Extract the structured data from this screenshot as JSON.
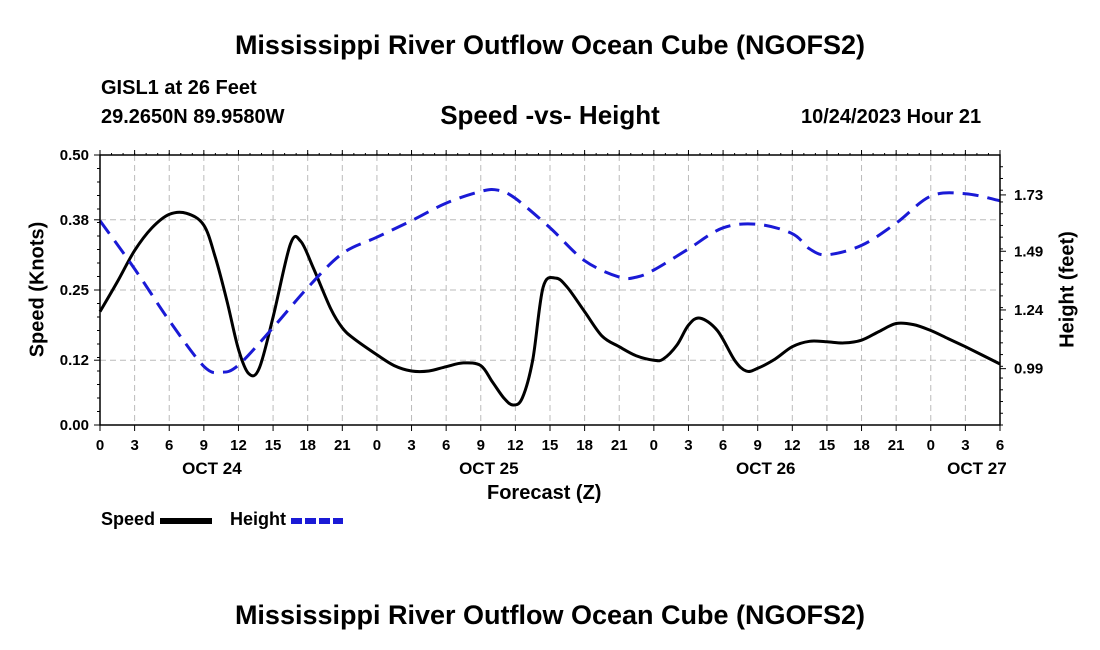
{
  "page": {
    "title": "Mississippi River Outflow Ocean Cube (NGOFS2)",
    "station": "GISL1 at 26 Feet",
    "coords": "29.2650N  89.9580W",
    "datetime": "10/24/2023 Hour 21",
    "footer_title": "Mississippi River Outflow Ocean Cube (NGOFS2)"
  },
  "legend": {
    "speed_label": "Speed",
    "height_label": "Height"
  },
  "colors": {
    "speed": "#000000",
    "height": "#1a1ad6",
    "grid": "#bbbbbb"
  },
  "chart_data": {
    "type": "line",
    "title": "Speed -vs- Height",
    "xlabel": "Forecast (Z)",
    "ylabel": "Speed (Knots)",
    "y2label": "Height (feet)",
    "xlim": [
      0,
      78
    ],
    "ylim": [
      0,
      0.5
    ],
    "y2lim": [
      0.75,
      1.9
    ],
    "x_tick_hours": [
      0,
      3,
      6,
      9,
      12,
      15,
      18,
      21,
      24,
      27,
      30,
      33,
      36,
      39,
      42,
      45,
      48,
      51,
      54,
      57,
      60,
      63,
      66,
      69,
      72,
      75,
      78
    ],
    "x_tick_labels": [
      "0",
      "3",
      "6",
      "9",
      "12",
      "15",
      "18",
      "21",
      "0",
      "3",
      "6",
      "9",
      "12",
      "15",
      "18",
      "21",
      "0",
      "3",
      "6",
      "9",
      "12",
      "15",
      "18",
      "21",
      "0",
      "3",
      "6"
    ],
    "date_labels": [
      {
        "hour": 9.7,
        "label": "OCT 24"
      },
      {
        "hour": 33.7,
        "label": "OCT 25"
      },
      {
        "hour": 57.7,
        "label": "OCT 26"
      },
      {
        "hour": 76.0,
        "label": "OCT 27"
      }
    ],
    "y_ticks": [
      0.0,
      0.12,
      0.25,
      0.38,
      0.5
    ],
    "y_tick_labels": [
      "0.00",
      "0.12",
      "0.25",
      "0.38",
      "0.50"
    ],
    "y2_ticks": [
      0.99,
      1.24,
      1.49,
      1.73
    ],
    "y2_tick_labels": [
      "0.99",
      "1.24",
      "1.49",
      "1.73"
    ],
    "series": [
      {
        "name": "Speed",
        "axis": "left",
        "style": "solid",
        "x": [
          0,
          1.5,
          3,
          4.5,
          6,
          7.5,
          9,
          10,
          11,
          12,
          12.9,
          13.8,
          15,
          16.5,
          17.4,
          18.5,
          20,
          21,
          22,
          24,
          25.5,
          27,
          28.5,
          30,
          31.5,
          33,
          34,
          35,
          35.8,
          36.6,
          37.5,
          38.4,
          39.5,
          40.5,
          42,
          43.5,
          45,
          46.5,
          48,
          48.8,
          50,
          51,
          52,
          53.5,
          55,
          56,
          57,
          58.5,
          60,
          61.5,
          63,
          64.5,
          66,
          67.5,
          69,
          70.5,
          72,
          73.5,
          75,
          78
        ],
        "values": [
          0.21,
          0.265,
          0.323,
          0.365,
          0.39,
          0.392,
          0.37,
          0.31,
          0.23,
          0.14,
          0.095,
          0.105,
          0.2,
          0.335,
          0.34,
          0.29,
          0.215,
          0.18,
          0.16,
          0.13,
          0.11,
          0.1,
          0.1,
          0.108,
          0.115,
          0.11,
          0.08,
          0.05,
          0.037,
          0.05,
          0.12,
          0.255,
          0.272,
          0.255,
          0.21,
          0.165,
          0.145,
          0.128,
          0.12,
          0.122,
          0.148,
          0.185,
          0.198,
          0.175,
          0.12,
          0.1,
          0.105,
          0.122,
          0.145,
          0.155,
          0.154,
          0.152,
          0.157,
          0.173,
          0.188,
          0.186,
          0.175,
          0.16,
          0.145,
          0.113
        ]
      },
      {
        "name": "Height",
        "axis": "right",
        "style": "dashed",
        "x": [
          0,
          3,
          6,
          9,
          10.5,
          12,
          15,
          18,
          21,
          24,
          27,
          30,
          33,
          34.5,
          36,
          39,
          42,
          45,
          46.5,
          48,
          51,
          54,
          57,
          60,
          61.5,
          63,
          66,
          69,
          72,
          75,
          78
        ],
        "values": [
          1.62,
          1.415,
          1.195,
          1.0,
          0.975,
          1.005,
          1.165,
          1.335,
          1.48,
          1.55,
          1.62,
          1.695,
          1.745,
          1.75,
          1.715,
          1.59,
          1.45,
          1.38,
          1.38,
          1.41,
          1.5,
          1.59,
          1.605,
          1.565,
          1.5,
          1.475,
          1.515,
          1.61,
          1.725,
          1.735,
          1.705
        ]
      }
    ]
  }
}
